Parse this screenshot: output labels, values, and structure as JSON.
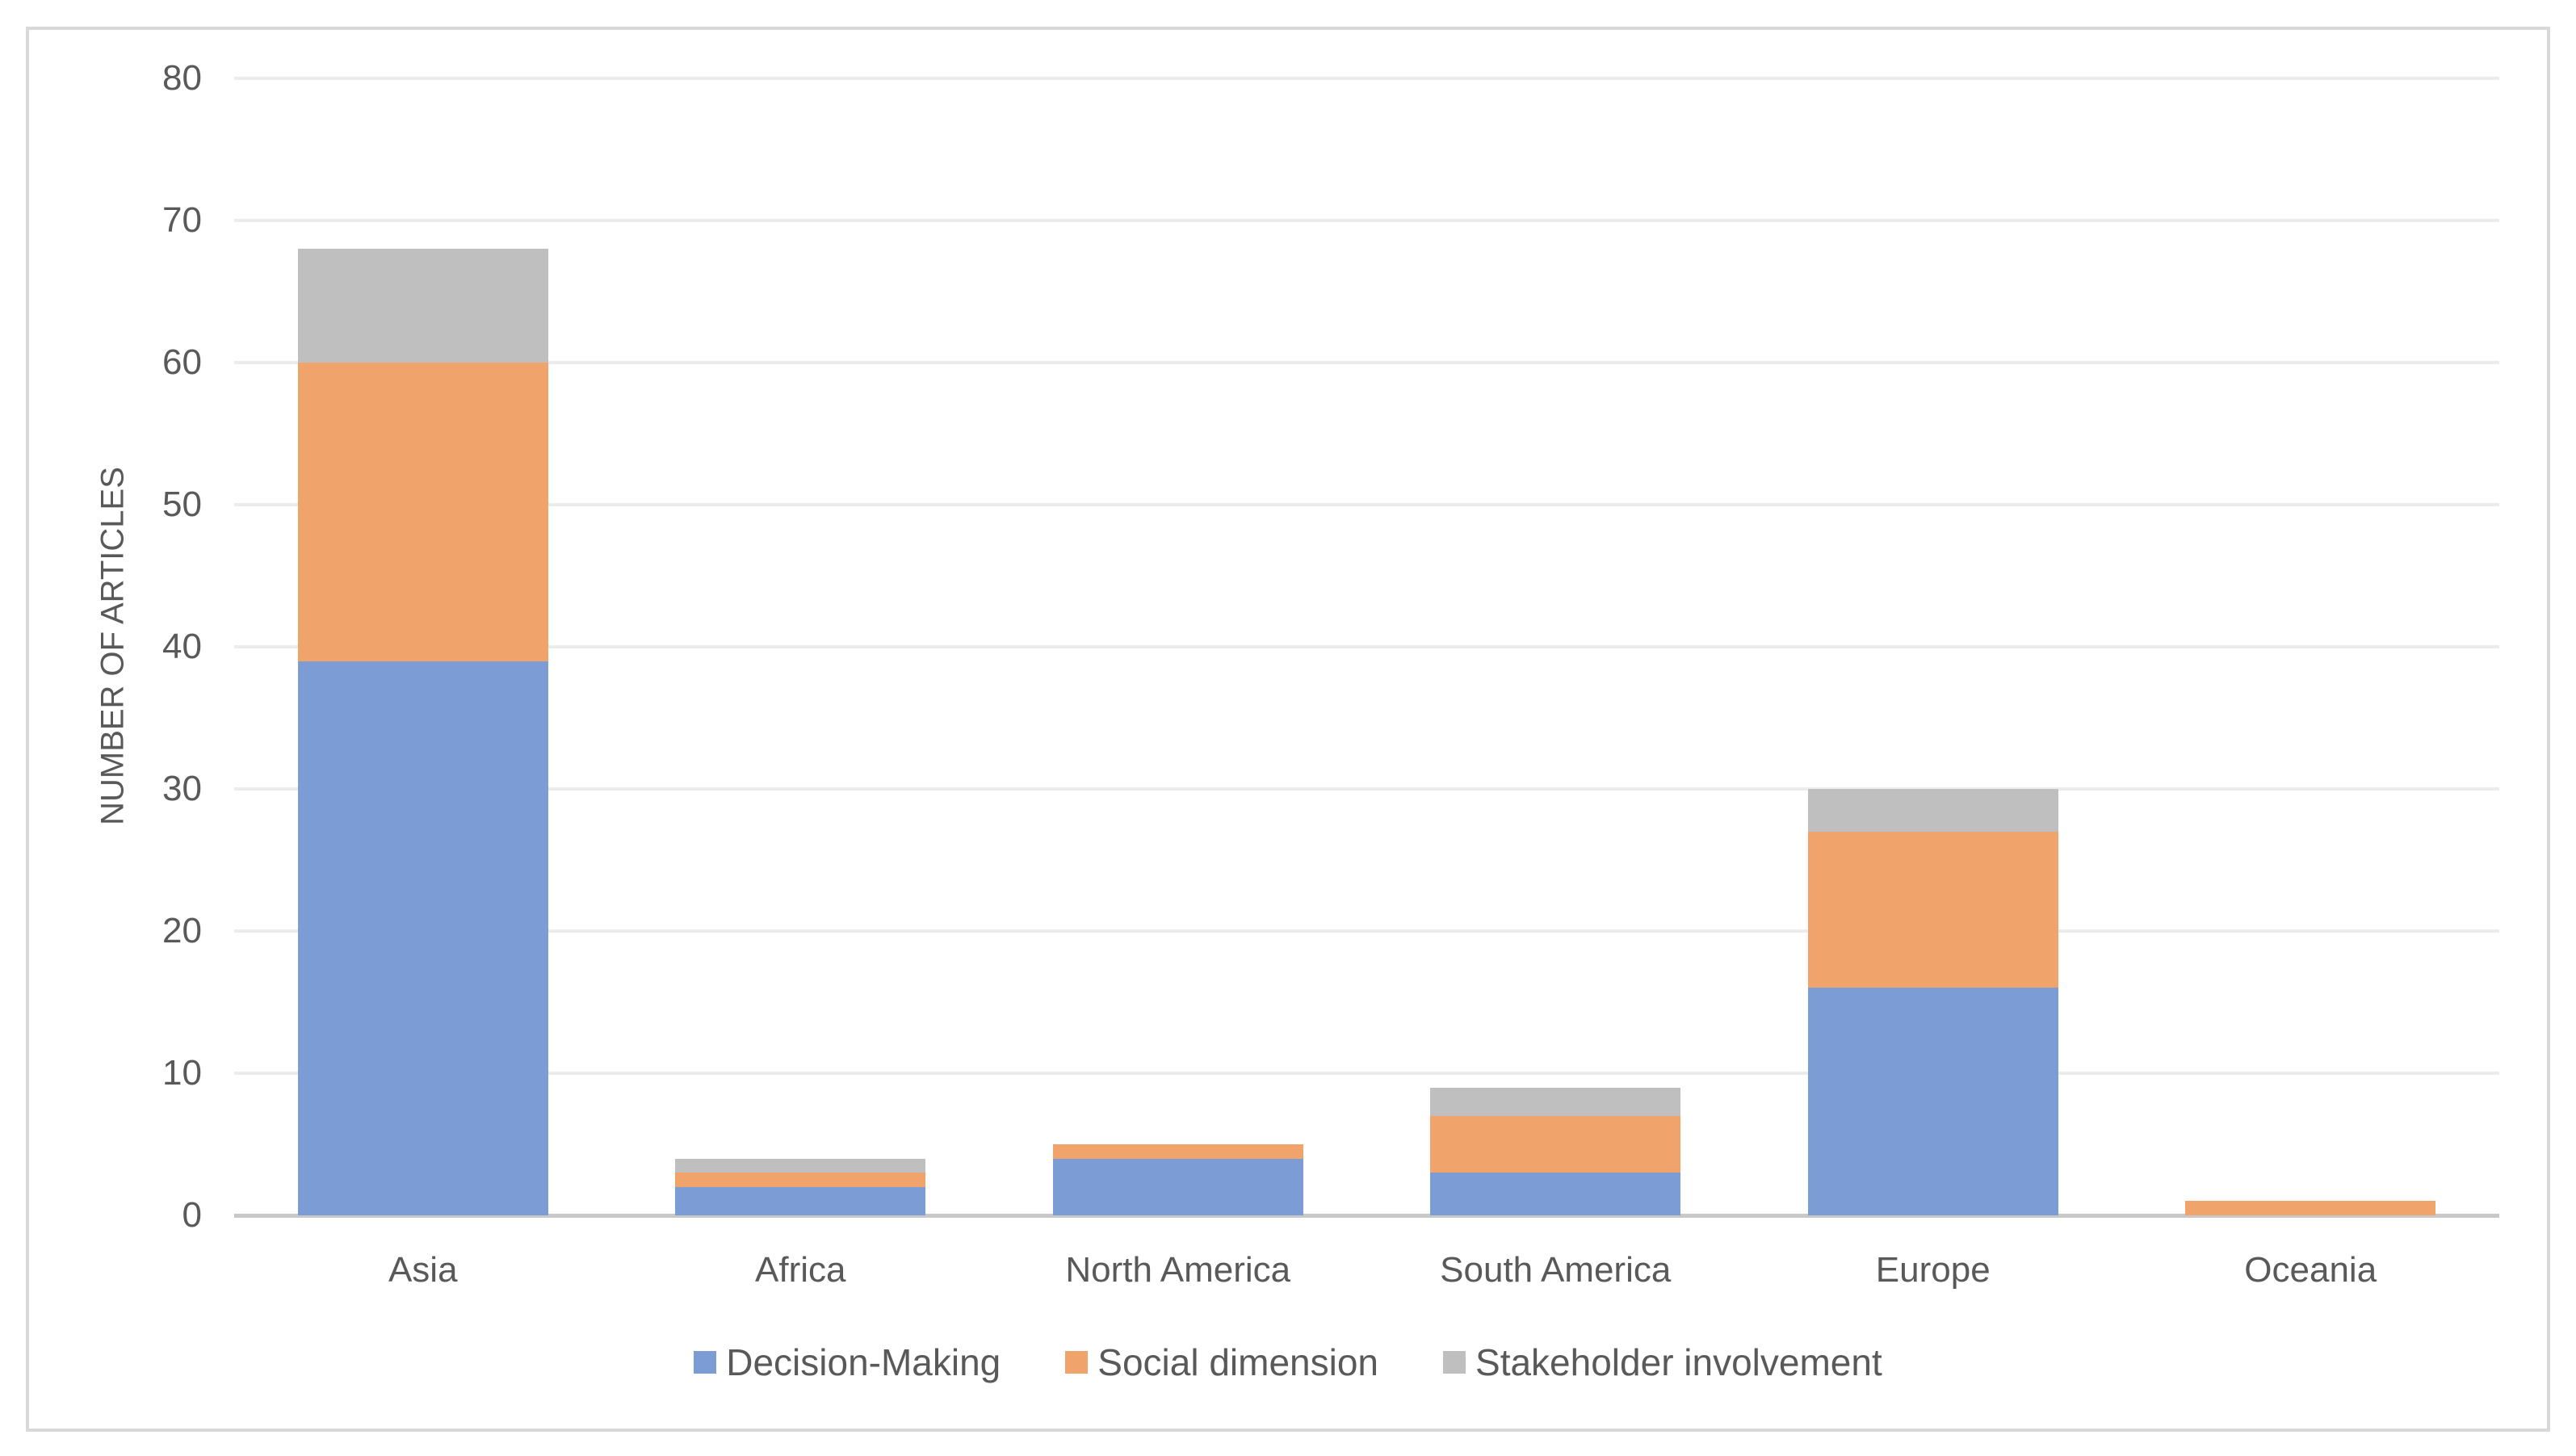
{
  "chart_data": {
    "type": "bar",
    "stacked": true,
    "title": "",
    "xlabel": "",
    "ylabel": "NUMBER OF ARTICLES",
    "ylim": [
      0,
      80
    ],
    "yticks": [
      0,
      10,
      20,
      30,
      40,
      50,
      60,
      70,
      80
    ],
    "grid": true,
    "legend_position": "bottom",
    "categories": [
      "Asia",
      "Africa",
      "North America",
      "South America",
      "Europe",
      "Oceania"
    ],
    "series": [
      {
        "name": "Decision-Making",
        "color": "#7b9cd4",
        "values": [
          39,
          2,
          4,
          3,
          16,
          0
        ]
      },
      {
        "name": "Social dimension",
        "color": "#f0a46c",
        "values": [
          21,
          1,
          1,
          4,
          11,
          1
        ]
      },
      {
        "name": "Stakeholder involvement",
        "color": "#bfbfbf",
        "values": [
          8,
          1,
          0,
          2,
          3,
          0
        ]
      }
    ]
  }
}
